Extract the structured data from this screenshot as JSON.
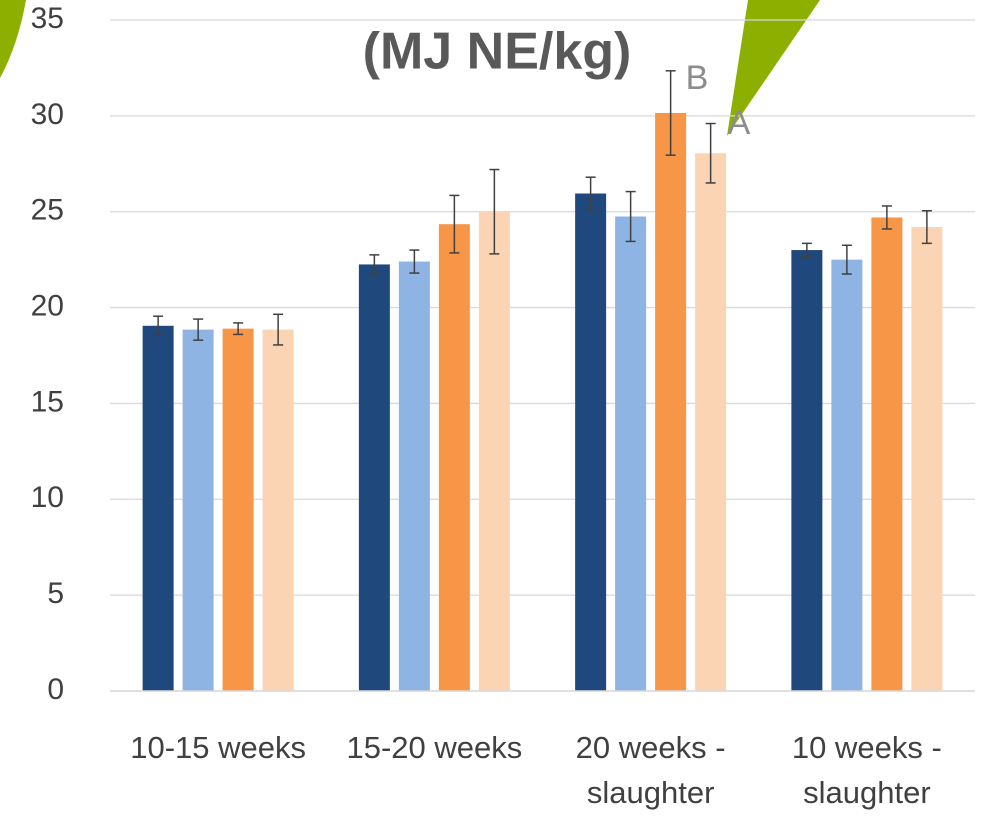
{
  "chart_data": {
    "type": "bar",
    "title": "(MJ NE/kg)",
    "annotations": [
      "B",
      "A"
    ],
    "categories": [
      "10-15 weeks",
      "15-20 weeks",
      "20 weeks - slaughter",
      "10 weeks - slaughter"
    ],
    "series": [
      {
        "color": "#1f497d",
        "values": [
          19.05,
          22.25,
          25.95,
          23.0
        ],
        "errors": [
          0.5,
          0.5,
          0.85,
          0.35
        ]
      },
      {
        "color": "#8eb4e3",
        "values": [
          18.85,
          22.4,
          24.75,
          22.5
        ],
        "errors": [
          0.55,
          0.6,
          1.3,
          0.75
        ]
      },
      {
        "color": "#f79646",
        "values": [
          18.9,
          24.35,
          30.15,
          24.7
        ],
        "errors": [
          0.3,
          1.5,
          2.2,
          0.6
        ]
      },
      {
        "color": "#fbd4b4",
        "values": [
          18.85,
          25.0,
          28.05,
          24.2
        ],
        "errors": [
          0.8,
          2.2,
          1.55,
          0.85
        ]
      }
    ],
    "ylim": [
      0,
      35
    ],
    "yticks": [
      0,
      5,
      10,
      15,
      20,
      25,
      30,
      35
    ],
    "grid": true
  }
}
